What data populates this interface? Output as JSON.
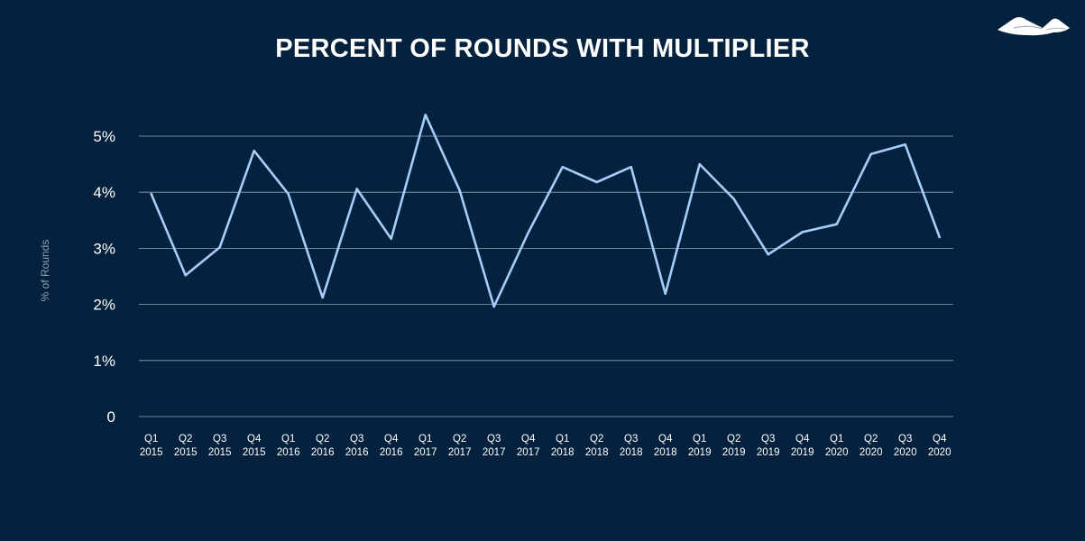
{
  "colors": {
    "background": "#04223d",
    "line": "#a7cdfa",
    "text": "#ffffff",
    "axis_label": "#8e9fb0",
    "grid": "#c2d3e4"
  },
  "logo": {
    "icon": "mountain-logo-icon"
  },
  "chart_data": {
    "type": "line",
    "title": "PERCENT OF ROUNDS WITH MULTIPLIER",
    "xlabel": "",
    "ylabel": "% of Rounds",
    "ylim": [
      0,
      5
    ],
    "yticks": [
      {
        "value": 0,
        "label": "0"
      },
      {
        "value": 1,
        "label": "1%"
      },
      {
        "value": 2,
        "label": "2%"
      },
      {
        "value": 3,
        "label": "3%"
      },
      {
        "value": 4,
        "label": "4%"
      },
      {
        "value": 5,
        "label": "5%"
      }
    ],
    "grid": true,
    "legend": "none",
    "categories": [
      [
        "Q1",
        "2015"
      ],
      [
        "Q2",
        "2015"
      ],
      [
        "Q3",
        "2015"
      ],
      [
        "Q4",
        "2015"
      ],
      [
        "Q1",
        "2016"
      ],
      [
        "Q2",
        "2016"
      ],
      [
        "Q3",
        "2016"
      ],
      [
        "Q4",
        "2016"
      ],
      [
        "Q1",
        "2017"
      ],
      [
        "Q2",
        "2017"
      ],
      [
        "Q3",
        "2017"
      ],
      [
        "Q4",
        "2017"
      ],
      [
        "Q1",
        "2018"
      ],
      [
        "Q2",
        "2018"
      ],
      [
        "Q3",
        "2018"
      ],
      [
        "Q4",
        "2018"
      ],
      [
        "Q1",
        "2019"
      ],
      [
        "Q2",
        "2019"
      ],
      [
        "Q3",
        "2019"
      ],
      [
        "Q4",
        "2019"
      ],
      [
        "Q1",
        "2020"
      ],
      [
        "Q2",
        "2020"
      ],
      [
        "Q3",
        "2020"
      ],
      [
        "Q4",
        "2020"
      ]
    ],
    "series": [
      {
        "values": [
          3.97,
          2.52,
          3.02,
          4.74,
          3.97,
          2.12,
          4.06,
          3.17,
          5.38,
          4.03,
          1.96,
          3.28,
          4.45,
          4.18,
          4.45,
          2.19,
          4.5,
          3.88,
          2.89,
          3.29,
          3.43,
          4.68,
          4.85,
          3.2
        ]
      }
    ]
  }
}
